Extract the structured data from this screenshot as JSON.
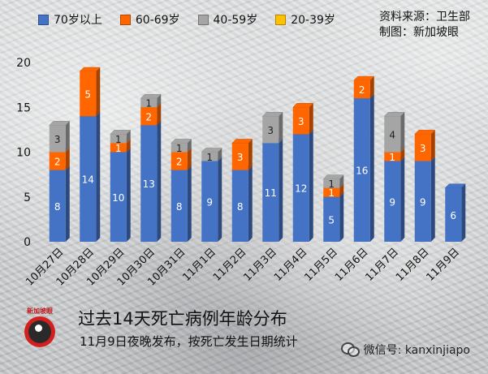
{
  "legend": [
    {
      "label": "70岁以上",
      "color": "#4472c4"
    },
    {
      "label": "60-69岁",
      "color": "#ff6600"
    },
    {
      "label": "40-59岁",
      "color": "#a5a5a5"
    },
    {
      "label": "20-39岁",
      "color": "#ffc000"
    }
  ],
  "source": {
    "line1": "资料来源：卫生部",
    "line2": "制图：新加坡眼"
  },
  "title": "过去14天死亡病例年龄分布",
  "subtitle": "11月9日夜晚发布，按死亡发生日期统计",
  "logo_text": "新加坡眼",
  "wechat": "微信号: kanxinjiapo",
  "chart_data": {
    "type": "bar",
    "stacked": true,
    "categories": [
      "10月27日",
      "10月28日",
      "10月29日",
      "10月30日",
      "10月31日",
      "11月1日",
      "11月2日",
      "11月3日",
      "11月4日",
      "11月5日",
      "11月6日",
      "11月7日",
      "11月8日",
      "11月9日"
    ],
    "series": [
      {
        "name": "70岁以上",
        "color": "#4472c4",
        "values": [
          8,
          14,
          10,
          13,
          8,
          9,
          8,
          11,
          12,
          5,
          16,
          9,
          9,
          6
        ]
      },
      {
        "name": "60-69岁",
        "color": "#ff6600",
        "values": [
          2,
          5,
          1,
          2,
          2,
          0,
          3,
          0,
          3,
          1,
          2,
          1,
          3,
          0
        ]
      },
      {
        "name": "40-59岁",
        "color": "#a5a5a5",
        "values": [
          3,
          0,
          1,
          1,
          1,
          1,
          0,
          3,
          0,
          1,
          0,
          4,
          0,
          0
        ]
      },
      {
        "name": "20-39岁",
        "color": "#ffc000",
        "values": [
          0,
          0,
          0,
          0,
          0,
          0,
          0,
          0,
          0,
          0,
          0,
          0,
          0,
          0
        ]
      }
    ],
    "yticks": [
      0,
      5,
      10,
      15,
      20
    ],
    "ylim": [
      0,
      21
    ],
    "grid": false,
    "legend_position": "top-left"
  }
}
